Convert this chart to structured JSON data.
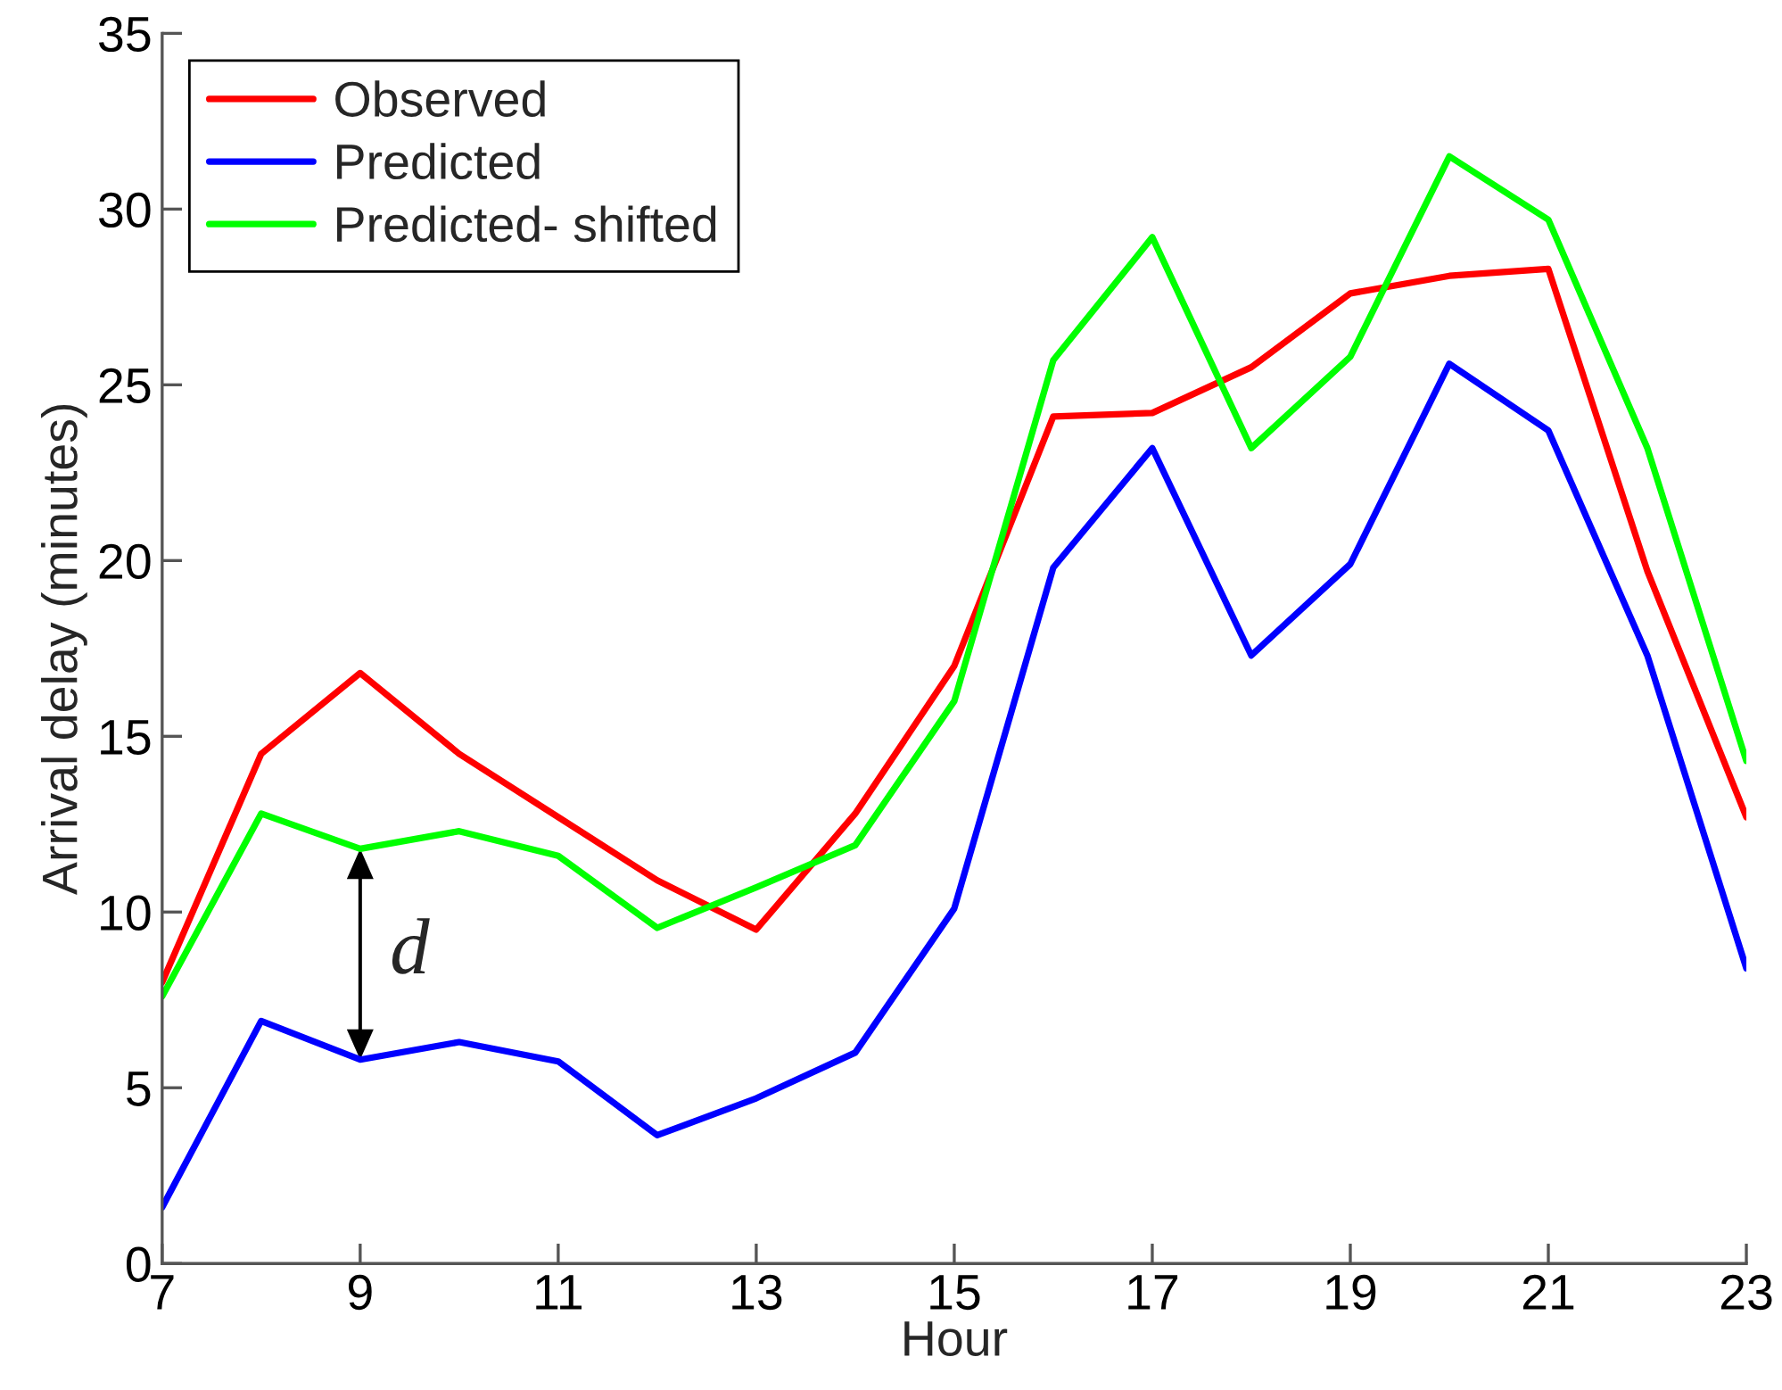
{
  "chart_data": {
    "type": "line",
    "xlabel": "Hour",
    "ylabel": "Arrival delay (minutes)",
    "x": [
      7,
      8,
      9,
      10,
      11,
      12,
      13,
      14,
      15,
      16,
      17,
      18,
      19,
      20,
      21,
      22,
      23
    ],
    "xlim": [
      7,
      23
    ],
    "xticks": [
      7,
      9,
      11,
      13,
      15,
      17,
      19,
      21,
      23
    ],
    "ylim": [
      0,
      35
    ],
    "yticks": [
      0,
      5,
      10,
      15,
      20,
      25,
      30,
      35
    ],
    "grid": false,
    "legend": "top left",
    "series": [
      {
        "name": "Observed",
        "color": "#ff0000",
        "values": [
          8.0,
          14.5,
          16.8,
          14.5,
          12.7,
          10.9,
          9.5,
          12.8,
          17.0,
          24.1,
          24.2,
          25.5,
          27.6,
          28.1,
          28.3,
          19.7,
          12.7
        ]
      },
      {
        "name": "Predicted",
        "color": "#0000ff",
        "values": [
          1.6,
          6.9,
          5.8,
          6.3,
          5.75,
          3.65,
          4.7,
          6.0,
          10.1,
          19.8,
          23.2,
          17.3,
          19.9,
          25.6,
          23.7,
          17.3,
          8.4
        ]
      },
      {
        "name": "Predicted- shifted",
        "color": "#00ff00",
        "values": [
          7.6,
          12.8,
          11.8,
          12.3,
          11.6,
          9.55,
          10.7,
          11.9,
          16.0,
          25.7,
          29.2,
          23.2,
          25.8,
          31.5,
          29.7,
          23.2,
          14.3
        ]
      }
    ],
    "annotations": [
      {
        "text": "d",
        "x": 9,
        "y": 11.8
      }
    ]
  }
}
